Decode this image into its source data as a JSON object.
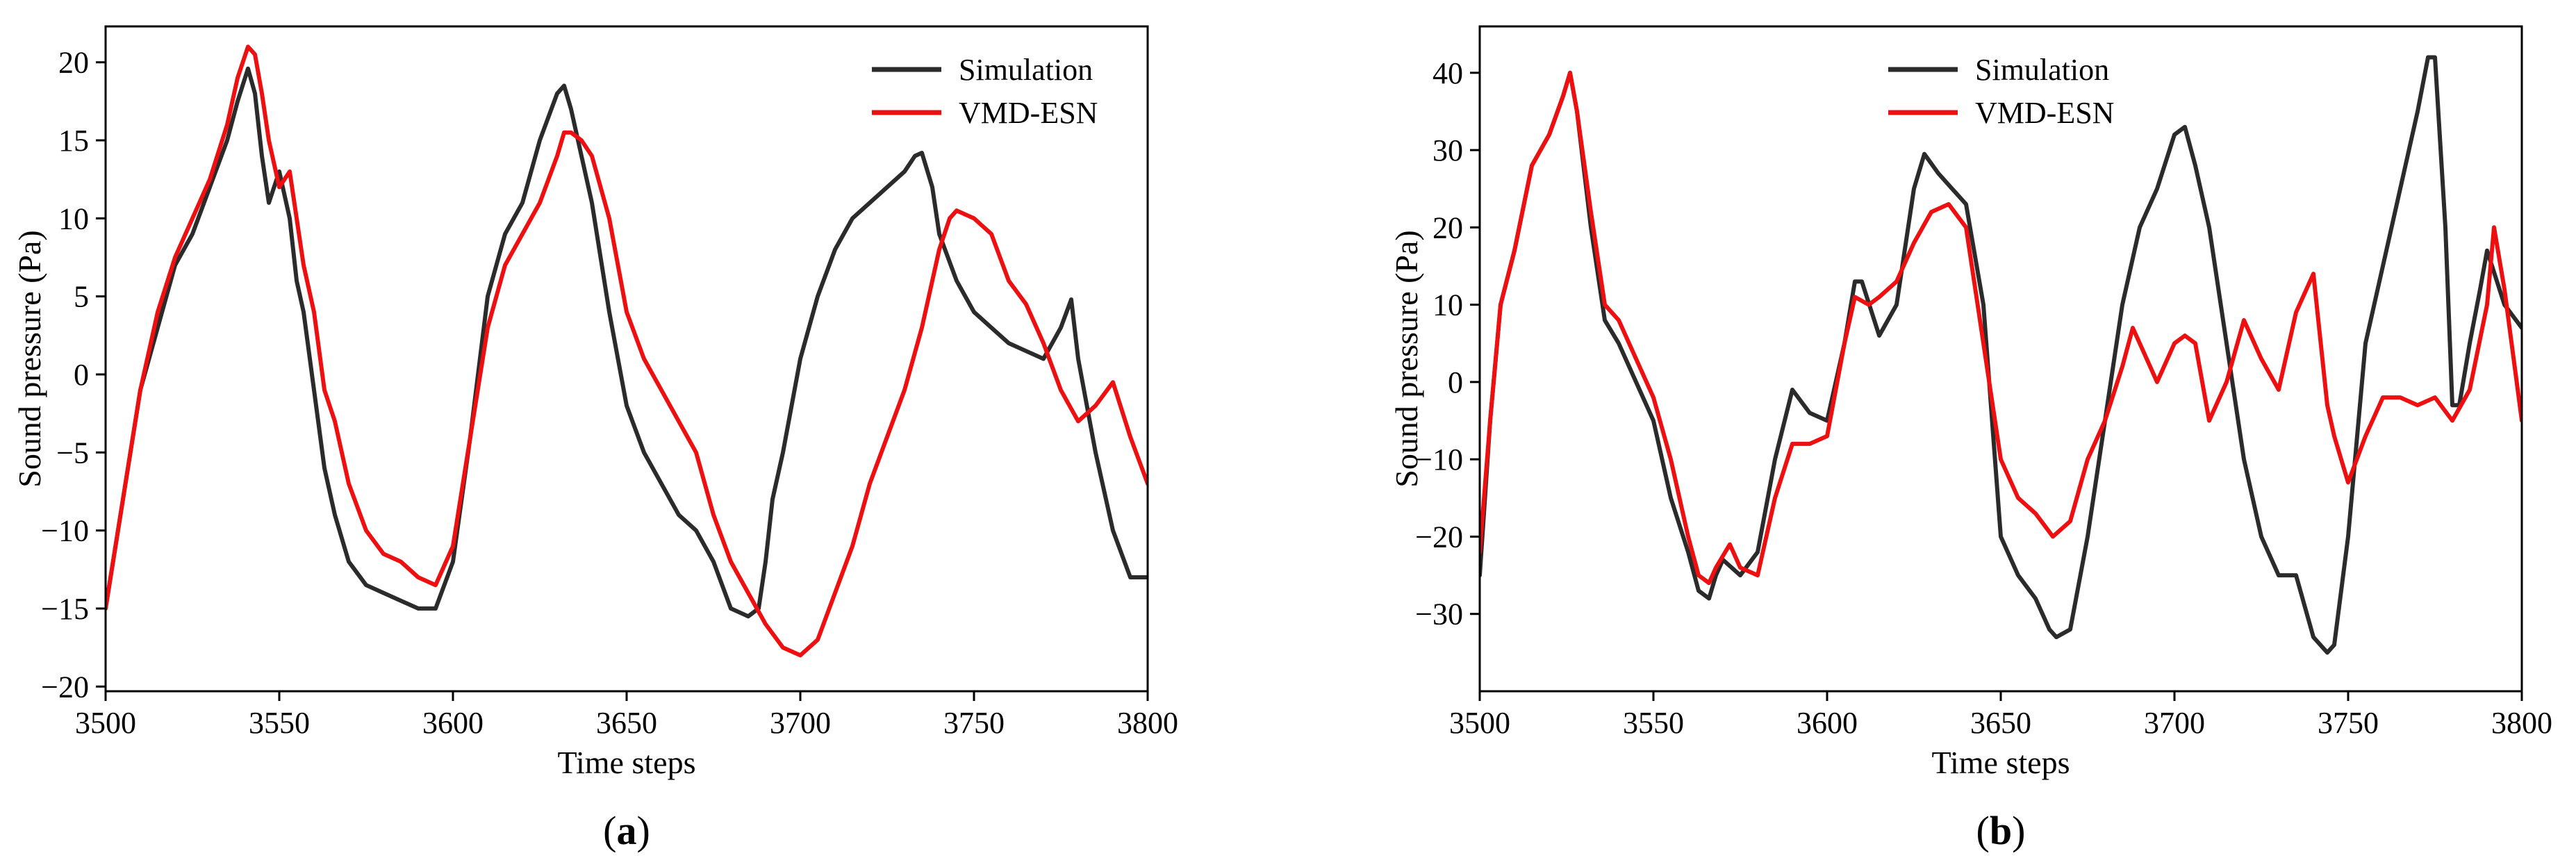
{
  "chart_data": [
    {
      "type": "line",
      "panel": "(a)",
      "panel_letter": "a",
      "xlabel": "Time steps",
      "ylabel": "Sound pressure (Pa)",
      "xlim": [
        3500,
        3800
      ],
      "ylim": [
        -20.3,
        22.3
      ],
      "xticks": [
        3500,
        3550,
        3600,
        3650,
        3700,
        3750,
        3800
      ],
      "yticks": [
        -20,
        -15,
        -10,
        -5,
        0,
        5,
        10,
        15,
        20
      ],
      "legend": [
        "Simulation",
        "VMD-ESN"
      ],
      "series": [
        {
          "name": "Simulation",
          "color": "#2b2b2b",
          "x": [
            3500,
            3505,
            3510,
            3515,
            3520,
            3525,
            3530,
            3535,
            3538,
            3541,
            3543,
            3545,
            3547,
            3550,
            3553,
            3555,
            3557,
            3560,
            3563,
            3566,
            3570,
            3575,
            3580,
            3585,
            3590,
            3595,
            3600,
            3605,
            3610,
            3615,
            3620,
            3625,
            3630,
            3632,
            3634,
            3637,
            3640,
            3645,
            3650,
            3655,
            3660,
            3665,
            3670,
            3675,
            3680,
            3685,
            3688,
            3690,
            3692,
            3695,
            3700,
            3705,
            3710,
            3715,
            3720,
            3725,
            3730,
            3733,
            3735,
            3738,
            3740,
            3745,
            3750,
            3755,
            3760,
            3765,
            3770,
            3775,
            3778,
            3780,
            3785,
            3790,
            3795,
            3800
          ],
          "y": [
            -15,
            -8,
            -1,
            3,
            7,
            9,
            12,
            15,
            17.5,
            19.6,
            18,
            14,
            11,
            13,
            10,
            6,
            4,
            -1,
            -6,
            -9,
            -12,
            -13.5,
            -14,
            -14.5,
            -15,
            -15,
            -12,
            -4,
            5,
            9,
            11,
            15,
            18,
            18.5,
            17,
            14,
            11,
            4,
            -2,
            -5,
            -7,
            -9,
            -10,
            -12,
            -15,
            -15.5,
            -15,
            -12,
            -8,
            -5,
            1,
            5,
            8,
            10,
            11,
            12,
            13,
            14,
            14.2,
            12,
            9,
            6,
            4,
            3,
            2,
            1.5,
            1,
            3,
            4.8,
            1,
            -5,
            -10,
            -13,
            -13
          ]
        },
        {
          "name": "VMD-ESN",
          "color": "#ee1010",
          "x": [
            3500,
            3505,
            3510,
            3515,
            3520,
            3525,
            3530,
            3535,
            3538,
            3541,
            3543,
            3545,
            3547,
            3550,
            3553,
            3555,
            3557,
            3560,
            3563,
            3566,
            3570,
            3575,
            3580,
            3585,
            3590,
            3595,
            3600,
            3605,
            3610,
            3615,
            3620,
            3625,
            3630,
            3632,
            3634,
            3637,
            3640,
            3645,
            3650,
            3655,
            3660,
            3665,
            3670,
            3675,
            3680,
            3685,
            3690,
            3695,
            3700,
            3705,
            3710,
            3715,
            3720,
            3725,
            3730,
            3735,
            3740,
            3743,
            3745,
            3750,
            3755,
            3760,
            3765,
            3770,
            3775,
            3780,
            3785,
            3790,
            3795,
            3800
          ],
          "y": [
            -15,
            -8,
            -1,
            4,
            7.5,
            10,
            12.5,
            16,
            19,
            21,
            20.5,
            18,
            15,
            12,
            13,
            10,
            7,
            4,
            -1,
            -3,
            -7,
            -10,
            -11.5,
            -12,
            -13,
            -13.5,
            -11,
            -4,
            3,
            7,
            9,
            11,
            14,
            15.5,
            15.5,
            15,
            14,
            10,
            4,
            1,
            -1,
            -3,
            -5,
            -9,
            -12,
            -14,
            -16,
            -17.5,
            -18,
            -17,
            -14,
            -11,
            -7,
            -4,
            -1,
            3,
            8,
            10,
            10.5,
            10,
            9,
            6,
            4.5,
            2,
            -1,
            -3,
            -2,
            -0.5,
            -4,
            -7
          ]
        }
      ]
    },
    {
      "type": "line",
      "panel": "(b)",
      "panel_letter": "b",
      "xlabel": "Time steps",
      "ylabel": "Sound pressure (Pa)",
      "xlim": [
        3500,
        3800
      ],
      "ylim": [
        -40,
        46
      ],
      "xticks": [
        3500,
        3550,
        3600,
        3650,
        3700,
        3750,
        3800
      ],
      "yticks": [
        -30,
        -20,
        -10,
        0,
        10,
        20,
        30,
        40
      ],
      "legend": [
        "Simulation",
        "VMD-ESN"
      ],
      "series": [
        {
          "name": "Simulation",
          "color": "#2b2b2b",
          "x": [
            3500,
            3503,
            3506,
            3510,
            3515,
            3520,
            3524,
            3526,
            3528,
            3532,
            3536,
            3540,
            3545,
            3550,
            3555,
            3560,
            3563,
            3566,
            3568,
            3570,
            3575,
            3580,
            3585,
            3590,
            3595,
            3600,
            3605,
            3608,
            3610,
            3615,
            3620,
            3625,
            3628,
            3632,
            3636,
            3640,
            3645,
            3650,
            3655,
            3660,
            3664,
            3666,
            3670,
            3675,
            3680,
            3685,
            3690,
            3695,
            3700,
            3703,
            3706,
            3710,
            3715,
            3720,
            3725,
            3730,
            3735,
            3740,
            3744,
            3746,
            3750,
            3755,
            3760,
            3765,
            3770,
            3773,
            3775,
            3778,
            3780,
            3782,
            3785,
            3788,
            3790,
            3795,
            3800
          ],
          "y": [
            -25,
            -5,
            10,
            17,
            28,
            32,
            37,
            40,
            35,
            20,
            8,
            5,
            0,
            -5,
            -15,
            -22,
            -27,
            -28,
            -25,
            -23,
            -25,
            -22,
            -10,
            -1,
            -4,
            -5,
            5,
            13,
            13,
            6,
            10,
            25,
            29.5,
            27,
            25,
            23,
            10,
            -20,
            -25,
            -28,
            -32,
            -33,
            -32,
            -20,
            -5,
            10,
            20,
            25,
            32,
            33,
            28,
            20,
            5,
            -10,
            -20,
            -25,
            -25,
            -33,
            -35,
            -34,
            -20,
            5,
            15,
            25,
            35,
            42,
            42,
            20,
            -3,
            -3,
            5,
            12,
            17,
            10,
            7
          ]
        },
        {
          "name": "VMD-ESN",
          "color": "#ee1010",
          "x": [
            3500,
            3503,
            3506,
            3510,
            3515,
            3520,
            3524,
            3526,
            3528,
            3532,
            3536,
            3540,
            3545,
            3550,
            3555,
            3560,
            3563,
            3566,
            3568,
            3572,
            3575,
            3580,
            3585,
            3590,
            3595,
            3600,
            3605,
            3608,
            3612,
            3615,
            3620,
            3625,
            3630,
            3635,
            3640,
            3645,
            3650,
            3655,
            3660,
            3665,
            3670,
            3675,
            3680,
            3685,
            3688,
            3690,
            3695,
            3700,
            3703,
            3706,
            3710,
            3715,
            3720,
            3725,
            3730,
            3735,
            3740,
            3744,
            3746,
            3750,
            3755,
            3760,
            3765,
            3770,
            3775,
            3780,
            3785,
            3790,
            3792,
            3795,
            3800
          ],
          "y": [
            -22,
            -5,
            10,
            17,
            28,
            32,
            37,
            40,
            35,
            22,
            10,
            8,
            3,
            -2,
            -10,
            -20,
            -25,
            -26,
            -24,
            -21,
            -24,
            -25,
            -15,
            -8,
            -8,
            -7,
            5,
            11,
            10,
            11,
            13,
            18,
            22,
            23,
            20,
            5,
            -10,
            -15,
            -17,
            -20,
            -18,
            -10,
            -5,
            2,
            7,
            5,
            0,
            5,
            6,
            5,
            -5,
            0,
            8,
            3,
            -1,
            9,
            14,
            -3,
            -7,
            -13,
            -7,
            -2,
            -2,
            -3,
            -2,
            -5,
            -1,
            10,
            20,
            12,
            -5
          ]
        }
      ]
    }
  ]
}
